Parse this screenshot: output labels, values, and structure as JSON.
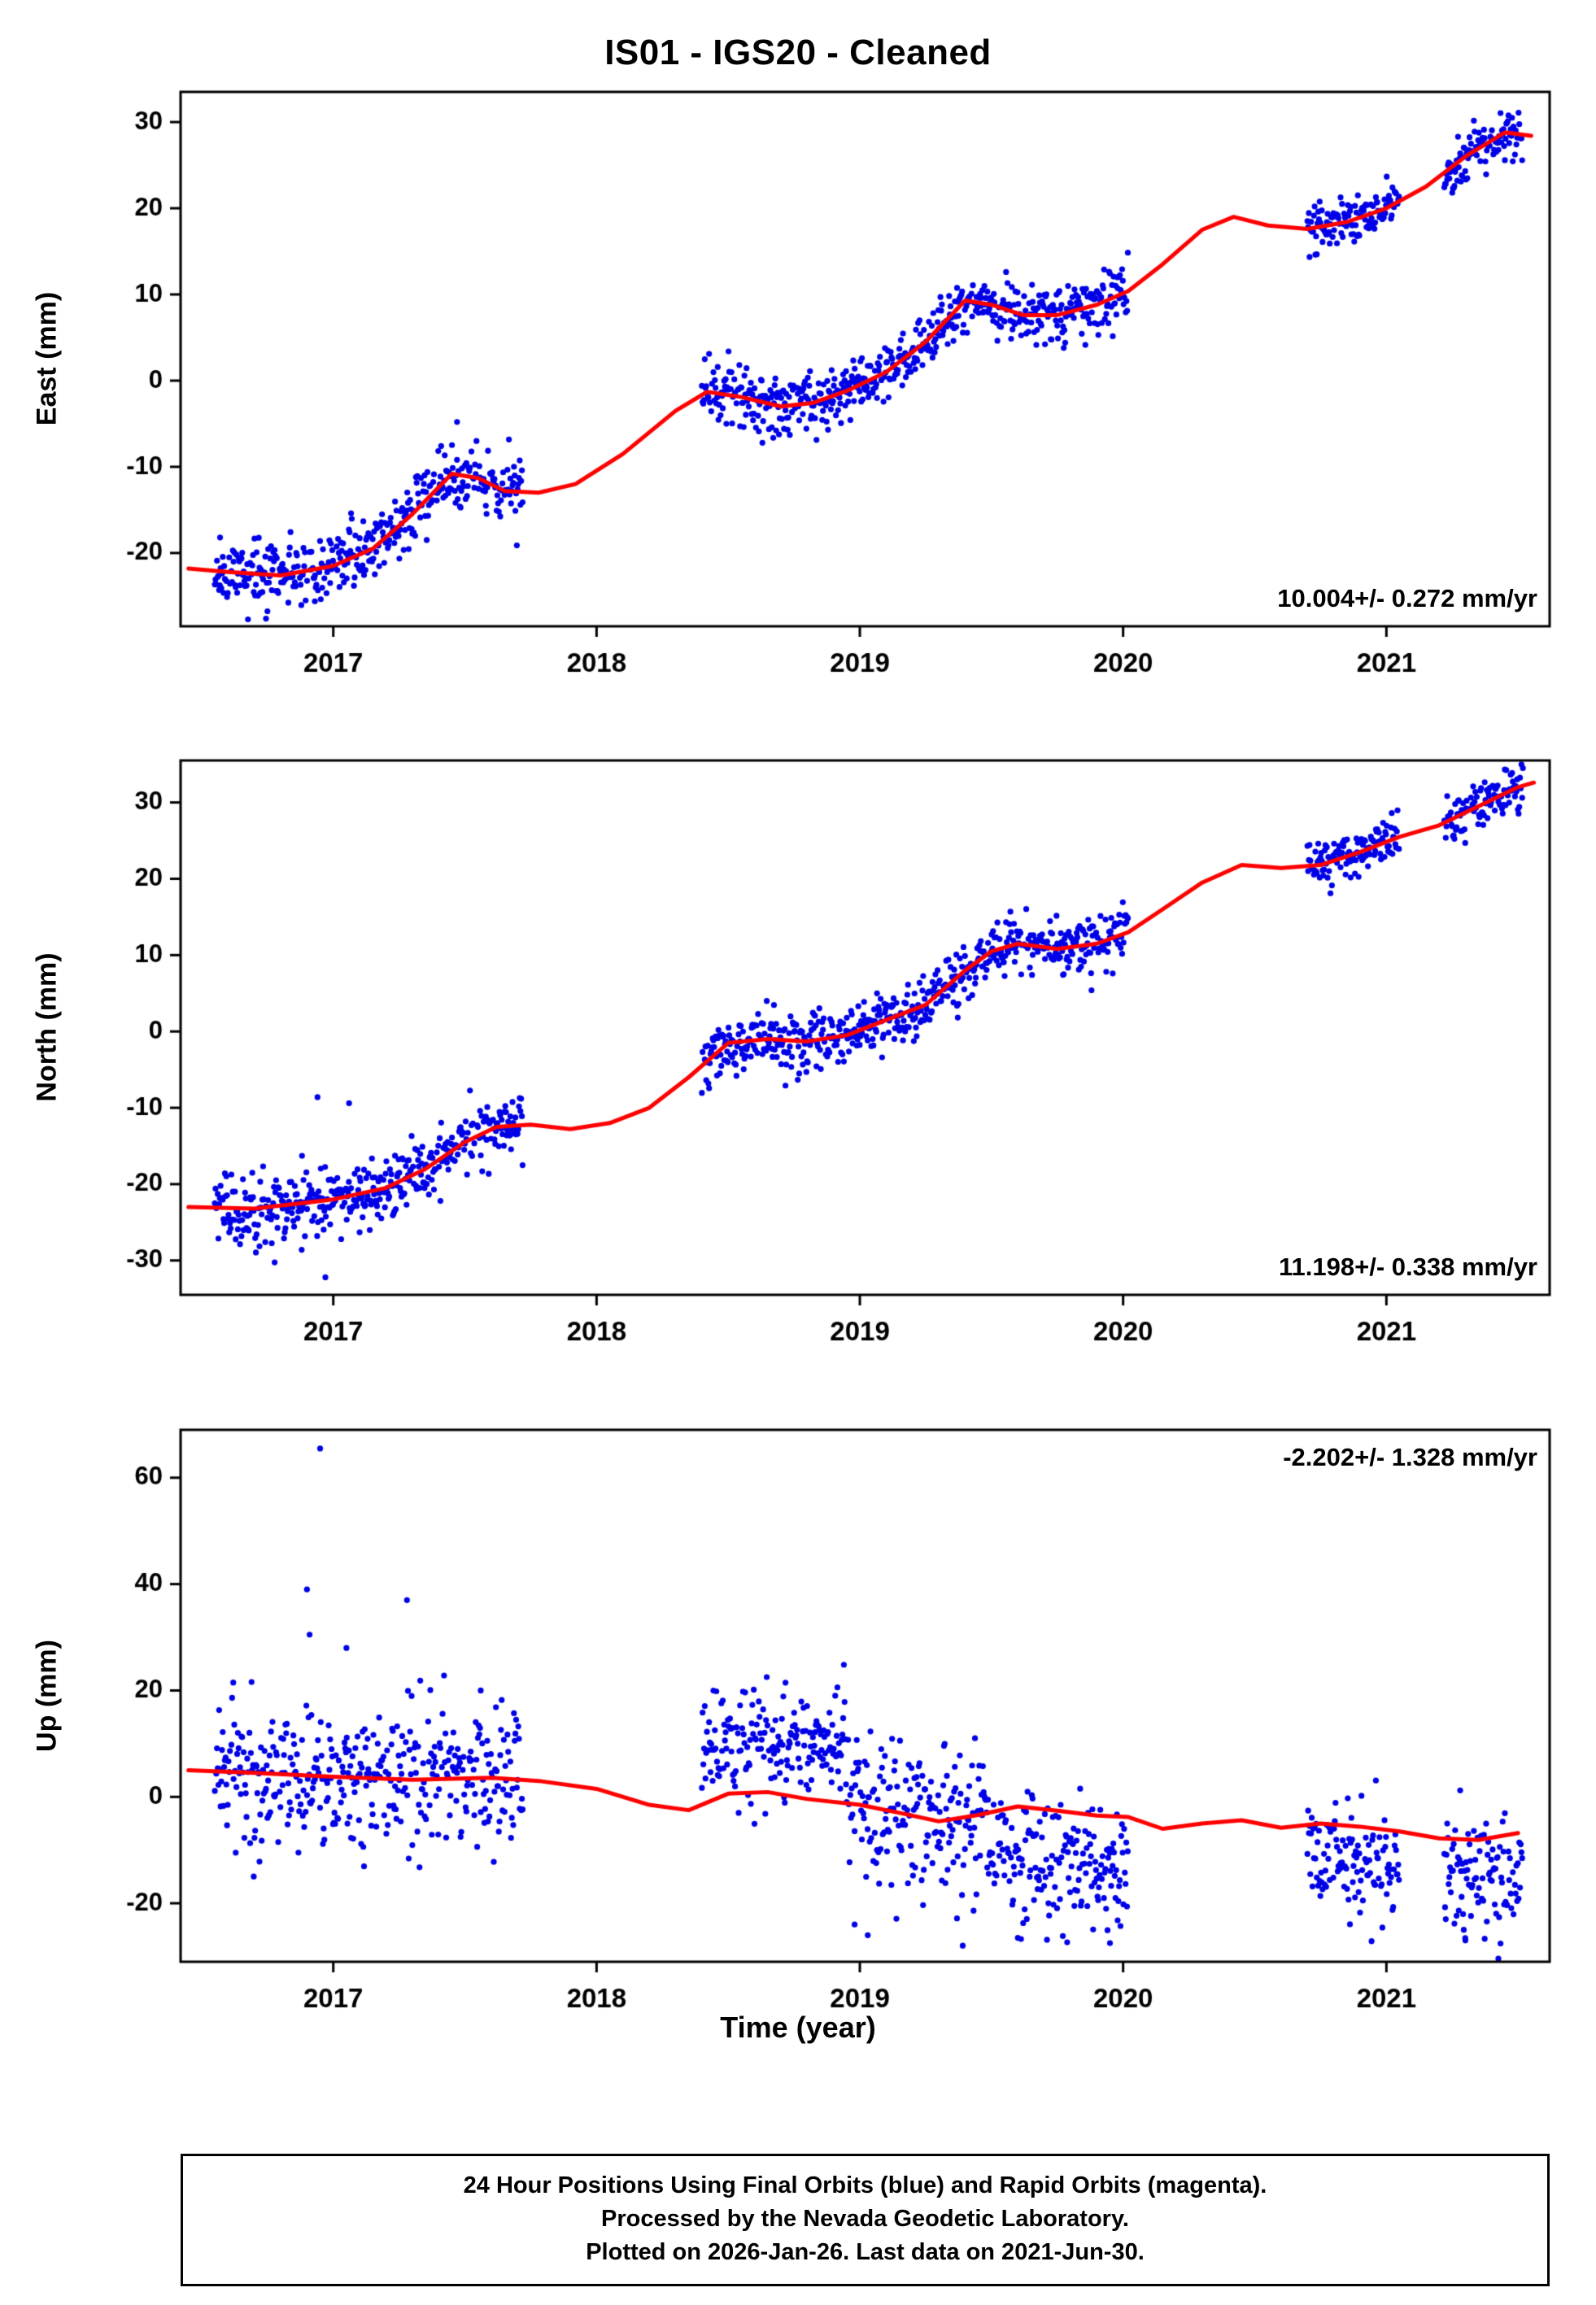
{
  "page": {
    "title": "IS01  - IGS20 - Cleaned"
  },
  "footer": {
    "lines": [
      "24 Hour Positions Using Final Orbits (blue) and Rapid Orbits (magenta).",
      "Processed by the Nevada Geodetic Laboratory.",
      "Plotted on 2026-Jan-26. Last data on 2021-Jun-30."
    ]
  },
  "chart_data": {
    "type": "scatter",
    "title": "IS01  - IGS20 - Cleaned",
    "xlabel": "Time (year)",
    "xlim": [
      2016.42,
      2021.62
    ],
    "xticks": [
      2017,
      2018,
      2019,
      2020,
      2021
    ],
    "grid": false,
    "legend": "none",
    "colors": {
      "points": "#0000e8",
      "trend": "#ff0000",
      "frame": "#000000",
      "background": "#ffffff"
    },
    "panels": [
      {
        "name": "east",
        "ylabel": "East (mm)",
        "ylim": [
          -28.5,
          33.5
        ],
        "yticks": [
          -20,
          -10,
          0,
          10,
          20,
          30
        ],
        "rate_label": "10.004+/- 0.272 mm/yr",
        "rate_label_pos": "bottom-right",
        "seed": 11,
        "trend": [
          [
            2016.45,
            -21.8
          ],
          [
            2016.6,
            -22.2
          ],
          [
            2016.8,
            -22.6
          ],
          [
            2017.0,
            -21.5
          ],
          [
            2017.15,
            -19.5
          ],
          [
            2017.3,
            -15.5
          ],
          [
            2017.45,
            -10.8
          ],
          [
            2017.55,
            -11.3
          ],
          [
            2017.65,
            -12.8
          ],
          [
            2017.78,
            -13.0
          ],
          [
            2017.92,
            -12.0
          ],
          [
            2018.1,
            -8.5
          ],
          [
            2018.3,
            -3.5
          ],
          [
            2018.42,
            -1.3
          ],
          [
            2018.55,
            -1.9
          ],
          [
            2018.7,
            -3.0
          ],
          [
            2018.82,
            -2.6
          ],
          [
            2018.95,
            -1.2
          ],
          [
            2019.1,
            1.0
          ],
          [
            2019.25,
            4.5
          ],
          [
            2019.4,
            9.3
          ],
          [
            2019.5,
            8.8
          ],
          [
            2019.62,
            7.6
          ],
          [
            2019.75,
            7.6
          ],
          [
            2019.9,
            8.8
          ],
          [
            2020.02,
            10.4
          ],
          [
            2020.15,
            13.5
          ],
          [
            2020.3,
            17.5
          ],
          [
            2020.42,
            19.0
          ],
          [
            2020.55,
            18.0
          ],
          [
            2020.7,
            17.6
          ],
          [
            2020.85,
            18.4
          ],
          [
            2021.0,
            20.0
          ],
          [
            2021.15,
            22.5
          ],
          [
            2021.3,
            26.0
          ],
          [
            2021.45,
            28.8
          ],
          [
            2021.55,
            28.4
          ]
        ],
        "scatter_segments": [
          {
            "t0": 2016.55,
            "t1": 2017.72,
            "offset": 0,
            "sigma": 1.8
          },
          {
            "t0": 2018.4,
            "t1": 2020.02,
            "offset": 0,
            "sigma": 1.7
          },
          {
            "t0": 2020.7,
            "t1": 2021.05,
            "offset": 0,
            "sigma": 1.3
          },
          {
            "t0": 2021.22,
            "t1": 2021.52,
            "offset": 0,
            "sigma": 1.5
          }
        ],
        "outliers": [
          [
            2016.57,
            -18.2
          ],
          [
            2016.93,
            -25.6
          ],
          [
            2017.47,
            -4.8
          ],
          [
            2018.63,
            -7.2
          ],
          [
            2019.78,
            4.4
          ]
        ]
      },
      {
        "name": "north",
        "ylabel": "North (mm)",
        "ylim": [
          -34.5,
          35.5
        ],
        "yticks": [
          -30,
          -20,
          -10,
          0,
          10,
          20,
          30
        ],
        "rate_label": "11.198+/- 0.338 mm/yr",
        "rate_label_pos": "bottom-right",
        "seed": 22,
        "trend": [
          [
            2016.45,
            -23.0
          ],
          [
            2016.7,
            -23.2
          ],
          [
            2017.0,
            -22.0
          ],
          [
            2017.2,
            -20.5
          ],
          [
            2017.35,
            -18.0
          ],
          [
            2017.5,
            -14.5
          ],
          [
            2017.62,
            -12.5
          ],
          [
            2017.75,
            -12.2
          ],
          [
            2017.9,
            -12.8
          ],
          [
            2018.05,
            -12.0
          ],
          [
            2018.2,
            -10.0
          ],
          [
            2018.35,
            -6.0
          ],
          [
            2018.5,
            -1.5
          ],
          [
            2018.65,
            -1.0
          ],
          [
            2018.8,
            -1.3
          ],
          [
            2018.95,
            -0.5
          ],
          [
            2019.1,
            1.5
          ],
          [
            2019.25,
            3.5
          ],
          [
            2019.4,
            8.0
          ],
          [
            2019.5,
            10.5
          ],
          [
            2019.6,
            11.5
          ],
          [
            2019.75,
            10.8
          ],
          [
            2019.9,
            11.5
          ],
          [
            2020.02,
            13.0
          ],
          [
            2020.15,
            16.0
          ],
          [
            2020.3,
            19.5
          ],
          [
            2020.45,
            21.8
          ],
          [
            2020.6,
            21.4
          ],
          [
            2020.75,
            21.8
          ],
          [
            2020.9,
            23.5
          ],
          [
            2021.05,
            25.5
          ],
          [
            2021.2,
            27.0
          ],
          [
            2021.35,
            29.5
          ],
          [
            2021.5,
            32.0
          ],
          [
            2021.56,
            32.6
          ]
        ],
        "scatter_segments": [
          {
            "t0": 2016.55,
            "t1": 2017.72,
            "offset": 0,
            "sigma": 2.2
          },
          {
            "t0": 2018.4,
            "t1": 2020.02,
            "offset": 0,
            "sigma": 1.8
          },
          {
            "t0": 2020.7,
            "t1": 2021.05,
            "offset": 0,
            "sigma": 1.6
          },
          {
            "t0": 2021.22,
            "t1": 2021.52,
            "offset": 0,
            "sigma": 1.6
          }
        ],
        "outliers": [
          [
            2016.88,
            -28.6
          ],
          [
            2016.97,
            -32.2
          ],
          [
            2017.03,
            -27.2
          ],
          [
            2016.94,
            -8.6
          ],
          [
            2017.06,
            -9.4
          ],
          [
            2017.1,
            -26.3
          ],
          [
            2019.88,
            5.4
          ]
        ]
      },
      {
        "name": "up",
        "ylabel": "Up (mm)",
        "ylim": [
          -31,
          69
        ],
        "yticks": [
          -20,
          0,
          20,
          40,
          60
        ],
        "rate_label": "-2.202+/- 1.328 mm/yr",
        "rate_label_pos": "top-right",
        "seed": 33,
        "trend": [
          [
            2016.45,
            5.0
          ],
          [
            2016.7,
            4.5
          ],
          [
            2017.0,
            3.8
          ],
          [
            2017.3,
            3.2
          ],
          [
            2017.6,
            3.6
          ],
          [
            2017.78,
            3.0
          ],
          [
            2018.0,
            1.5
          ],
          [
            2018.2,
            -1.5
          ],
          [
            2018.35,
            -2.5
          ],
          [
            2018.5,
            0.6
          ],
          [
            2018.65,
            0.9
          ],
          [
            2018.8,
            -0.4
          ],
          [
            2019.0,
            -1.5
          ],
          [
            2019.15,
            -3.0
          ],
          [
            2019.3,
            -4.6
          ],
          [
            2019.45,
            -3.4
          ],
          [
            2019.6,
            -1.8
          ],
          [
            2019.75,
            -2.6
          ],
          [
            2019.9,
            -3.5
          ],
          [
            2020.02,
            -3.8
          ],
          [
            2020.15,
            -6.0
          ],
          [
            2020.3,
            -5.0
          ],
          [
            2020.45,
            -4.4
          ],
          [
            2020.6,
            -5.8
          ],
          [
            2020.75,
            -5.0
          ],
          [
            2020.9,
            -5.6
          ],
          [
            2021.05,
            -6.5
          ],
          [
            2021.2,
            -7.8
          ],
          [
            2021.35,
            -8.1
          ],
          [
            2021.5,
            -6.8
          ]
        ],
        "scatter_segments": [
          {
            "t0": 2016.55,
            "t1": 2017.72,
            "offset": 0,
            "sigma": 6.5
          },
          {
            "t0": 2018.4,
            "t1": 2018.95,
            "offset": 10,
            "sigma": 5.0
          },
          {
            "t0": 2018.95,
            "t1": 2019.5,
            "offset": -1,
            "sigma": 7.5
          },
          {
            "t0": 2019.5,
            "t1": 2020.02,
            "offset": -8.5,
            "sigma": 6.0
          },
          {
            "t0": 2020.7,
            "t1": 2021.05,
            "offset": -7,
            "sigma": 5.5
          },
          {
            "t0": 2021.22,
            "t1": 2021.52,
            "offset": -7,
            "sigma": 5.5
          }
        ],
        "outliers": [
          [
            2016.95,
            65.5
          ],
          [
            2016.9,
            39.0
          ],
          [
            2016.91,
            30.5
          ],
          [
            2017.28,
            37.0
          ],
          [
            2017.05,
            28.0
          ],
          [
            2016.62,
            21.5
          ],
          [
            2017.56,
            20.0
          ],
          [
            2018.98,
            -24.0
          ],
          [
            2019.03,
            -26.0
          ],
          [
            2019.6,
            -26.5
          ],
          [
            2019.95,
            -27.5
          ],
          [
            2021.3,
            -27.0
          ]
        ]
      }
    ]
  }
}
